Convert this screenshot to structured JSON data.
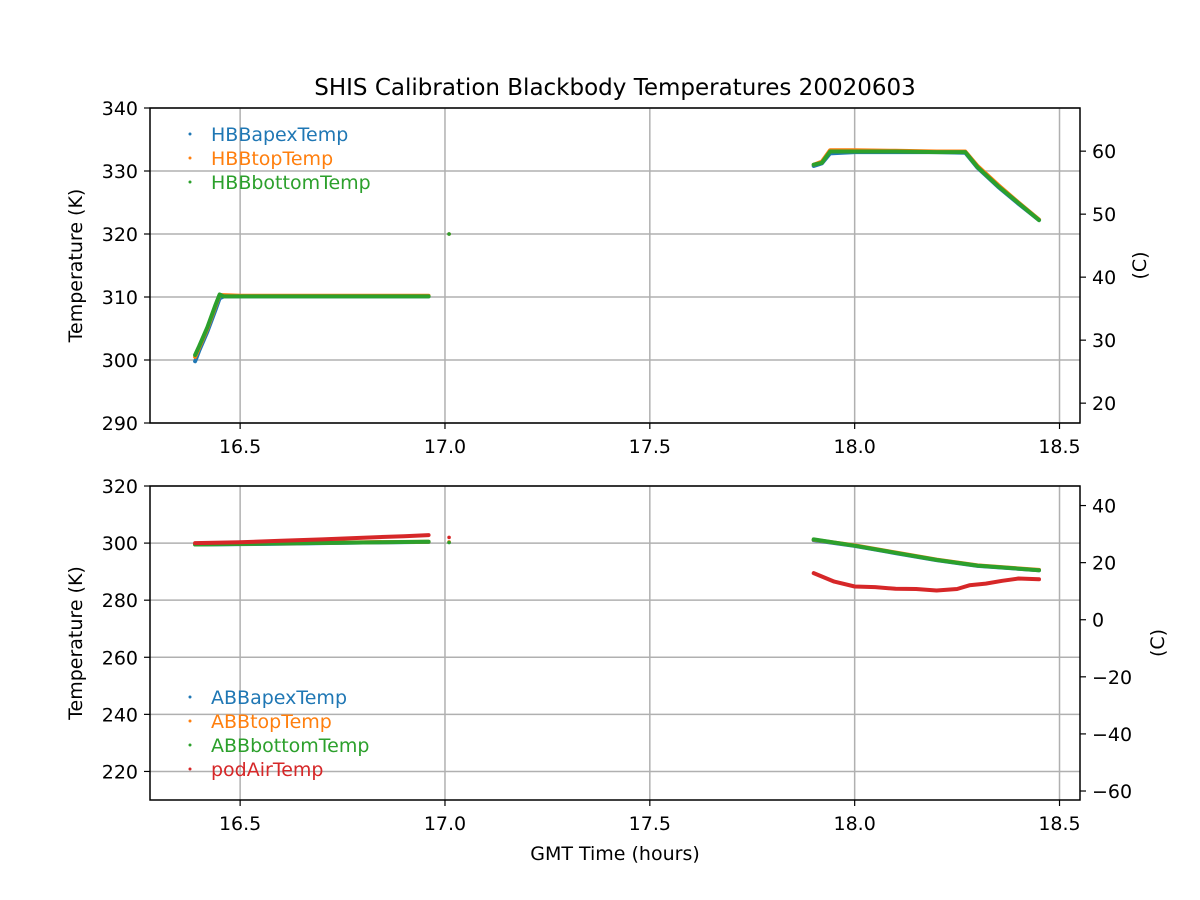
{
  "chart_data": [
    {
      "type": "scatter",
      "title": "SHIS Calibration Blackbody Temperatures 20020603",
      "xlabel": "",
      "ylabel": "Temperature (K)",
      "ylabel_right": "(C)",
      "xlim": [
        16.28,
        18.55
      ],
      "ylim": [
        290,
        340
      ],
      "ylim_right_c": [
        16.85,
        66.85
      ],
      "xticks": [
        "16.5",
        "17.0",
        "17.5",
        "18.0",
        "18.5"
      ],
      "xtick_values": [
        16.5,
        17.0,
        17.5,
        18.0,
        18.5
      ],
      "yticks": [
        "290",
        "300",
        "310",
        "320",
        "330",
        "340"
      ],
      "ytick_values": [
        290,
        300,
        310,
        320,
        330,
        340
      ],
      "yticks_right": [
        "20",
        "30",
        "40",
        "50",
        "60"
      ],
      "ytick_right_values": [
        20,
        30,
        40,
        50,
        60
      ],
      "grid": true,
      "legend_position": "upper-left",
      "series": [
        {
          "name": "HBBapexTemp",
          "color": "#1f77b4",
          "segments": [
            [
              [
                16.39,
                299.8
              ],
              [
                16.4,
                301.5
              ],
              [
                16.42,
                304.5
              ],
              [
                16.44,
                308.0
              ],
              [
                16.45,
                309.8
              ],
              [
                16.46,
                310.1
              ],
              [
                16.5,
                310.1
              ],
              [
                16.7,
                310.1
              ],
              [
                16.96,
                310.1
              ]
            ],
            [
              [
                17.01,
                320.0
              ]
            ],
            [
              [
                17.9,
                330.8
              ],
              [
                17.92,
                331.2
              ],
              [
                17.94,
                332.8
              ],
              [
                18.0,
                333.0
              ],
              [
                18.1,
                333.0
              ],
              [
                18.2,
                333.0
              ],
              [
                18.27,
                332.9
              ],
              [
                18.3,
                330.5
              ],
              [
                18.35,
                327.5
              ],
              [
                18.4,
                324.8
              ],
              [
                18.45,
                322.2
              ]
            ]
          ]
        },
        {
          "name": "HBBtopTemp",
          "color": "#ff7f0e",
          "segments": [
            [
              [
                16.39,
                300.5
              ],
              [
                16.4,
                302.0
              ],
              [
                16.42,
                305.0
              ],
              [
                16.44,
                308.6
              ],
              [
                16.45,
                310.3
              ],
              [
                16.46,
                310.3
              ],
              [
                16.5,
                310.2
              ],
              [
                16.7,
                310.2
              ],
              [
                16.96,
                310.2
              ]
            ],
            [
              [
                17.01,
                320.0
              ]
            ],
            [
              [
                17.9,
                331.0
              ],
              [
                17.92,
                331.5
              ],
              [
                17.94,
                333.3
              ],
              [
                18.0,
                333.3
              ],
              [
                18.1,
                333.2
              ],
              [
                18.2,
                333.1
              ],
              [
                18.27,
                333.1
              ],
              [
                18.3,
                330.8
              ],
              [
                18.35,
                327.8
              ],
              [
                18.4,
                325.0
              ],
              [
                18.45,
                322.3
              ]
            ]
          ]
        },
        {
          "name": "HBBbottomTemp",
          "color": "#2ca02c",
          "segments": [
            [
              [
                16.39,
                300.8
              ],
              [
                16.4,
                302.2
              ],
              [
                16.42,
                305.2
              ],
              [
                16.44,
                308.8
              ],
              [
                16.45,
                310.4
              ],
              [
                16.46,
                310.1
              ],
              [
                16.5,
                310.1
              ],
              [
                16.7,
                310.1
              ],
              [
                16.96,
                310.1
              ]
            ],
            [
              [
                17.01,
                320.0
              ]
            ],
            [
              [
                17.9,
                331.0
              ],
              [
                17.92,
                331.3
              ],
              [
                17.94,
                333.1
              ],
              [
                18.0,
                333.1
              ],
              [
                18.1,
                333.1
              ],
              [
                18.2,
                333.0
              ],
              [
                18.27,
                333.0
              ],
              [
                18.3,
                330.6
              ],
              [
                18.35,
                327.6
              ],
              [
                18.4,
                324.9
              ],
              [
                18.45,
                322.2
              ]
            ]
          ]
        }
      ]
    },
    {
      "type": "scatter",
      "title": "",
      "xlabel": "GMT Time (hours)",
      "ylabel": "Temperature (K)",
      "ylabel_right": "(C)",
      "xlim": [
        16.28,
        18.55
      ],
      "ylim": [
        210,
        320
      ],
      "ylim_right_c": [
        -63.15,
        46.85
      ],
      "xticks": [
        "16.5",
        "17.0",
        "17.5",
        "18.0",
        "18.5"
      ],
      "xtick_values": [
        16.5,
        17.0,
        17.5,
        18.0,
        18.5
      ],
      "yticks": [
        "220",
        "240",
        "260",
        "280",
        "300",
        "320"
      ],
      "ytick_values": [
        220,
        240,
        260,
        280,
        300,
        320
      ],
      "yticks_right": [
        "−60",
        "−40",
        "−20",
        "0",
        "20",
        "40"
      ],
      "ytick_right_values": [
        -60,
        -40,
        -20,
        0,
        20,
        40
      ],
      "grid": true,
      "legend_position": "lower-left",
      "series": [
        {
          "name": "ABBapexTemp",
          "color": "#1f77b4",
          "segments": [
            [
              [
                16.39,
                299.5
              ],
              [
                16.6,
                299.8
              ],
              [
                16.8,
                300.2
              ],
              [
                16.96,
                300.4
              ]
            ],
            [
              [
                17.01,
                300.3
              ]
            ],
            [
              [
                17.9,
                301.0
              ],
              [
                18.0,
                299.0
              ],
              [
                18.1,
                296.5
              ],
              [
                18.2,
                294.0
              ],
              [
                18.3,
                292.0
              ],
              [
                18.45,
                290.5
              ]
            ]
          ]
        },
        {
          "name": "ABBtopTemp",
          "color": "#ff7f0e",
          "segments": [
            [
              [
                16.39,
                299.6
              ],
              [
                16.6,
                299.9
              ],
              [
                16.8,
                300.3
              ],
              [
                16.96,
                300.5
              ]
            ],
            [
              [
                17.01,
                300.4
              ]
            ],
            [
              [
                17.9,
                301.2
              ],
              [
                18.0,
                299.2
              ],
              [
                18.1,
                296.7
              ],
              [
                18.2,
                294.2
              ],
              [
                18.3,
                292.2
              ],
              [
                18.45,
                290.6
              ]
            ]
          ]
        },
        {
          "name": "ABBbottomTemp",
          "color": "#2ca02c",
          "segments": [
            [
              [
                16.39,
                299.5
              ],
              [
                16.6,
                299.9
              ],
              [
                16.8,
                300.2
              ],
              [
                16.96,
                300.5
              ]
            ],
            [
              [
                17.01,
                300.2
              ]
            ],
            [
              [
                17.9,
                301.3
              ],
              [
                18.0,
                299.1
              ],
              [
                18.1,
                296.6
              ],
              [
                18.2,
                294.1
              ],
              [
                18.3,
                292.1
              ],
              [
                18.45,
                290.5
              ]
            ]
          ]
        },
        {
          "name": "podAirTemp",
          "color": "#d62728",
          "segments": [
            [
              [
                16.39,
                300.0
              ],
              [
                16.5,
                300.3
              ],
              [
                16.6,
                300.8
              ],
              [
                16.7,
                301.3
              ],
              [
                16.8,
                301.9
              ],
              [
                16.9,
                302.4
              ],
              [
                16.96,
                302.8
              ]
            ],
            [
              [
                17.01,
                302.0
              ]
            ],
            [
              [
                17.9,
                289.5
              ],
              [
                17.95,
                286.5
              ],
              [
                18.0,
                284.8
              ],
              [
                18.05,
                284.6
              ],
              [
                18.1,
                284.0
              ],
              [
                18.15,
                283.9
              ],
              [
                18.2,
                283.4
              ],
              [
                18.25,
                283.9
              ],
              [
                18.28,
                285.2
              ],
              [
                18.32,
                285.8
              ],
              [
                18.36,
                286.8
              ],
              [
                18.4,
                287.6
              ],
              [
                18.45,
                287.3
              ]
            ]
          ]
        }
      ]
    }
  ]
}
